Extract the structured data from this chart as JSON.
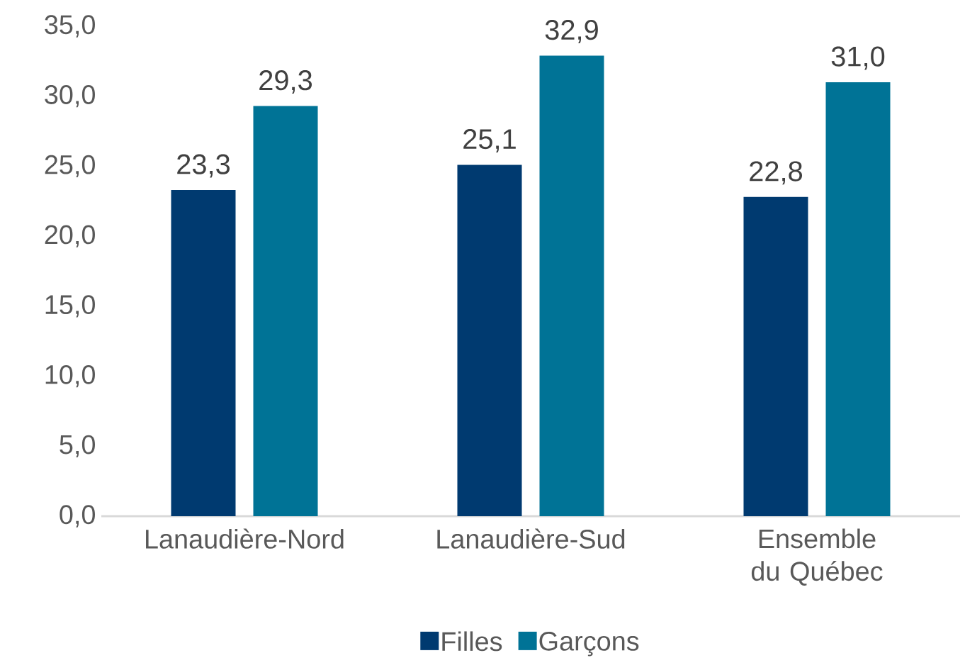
{
  "chart_data": {
    "type": "bar",
    "categories": [
      "Lanaudière-Nord",
      "Lanaudière-Sud",
      "Ensemble du Québec"
    ],
    "series": [
      {
        "name": "Filles",
        "color": "#003a70",
        "values": [
          23.3,
          25.1,
          22.8
        ],
        "value_labels": [
          "23,3",
          "25,1",
          "22,8"
        ]
      },
      {
        "name": "Garçons",
        "color": "#007396",
        "values": [
          29.3,
          32.9,
          31.0
        ],
        "value_labels": [
          "29,3",
          "32,9",
          "31,0"
        ]
      }
    ],
    "ylim": [
      0,
      35
    ],
    "yticks": [
      {
        "value": 0,
        "label": "0,0"
      },
      {
        "value": 5,
        "label": "5,0"
      },
      {
        "value": 10,
        "label": "10,0"
      },
      {
        "value": 15,
        "label": "15,0"
      },
      {
        "value": 20,
        "label": "20,0"
      },
      {
        "value": 25,
        "label": "25,0"
      },
      {
        "value": 30,
        "label": "30,0"
      },
      {
        "value": 35,
        "label": "35,0"
      }
    ],
    "grid": false,
    "legend": "bottom"
  }
}
